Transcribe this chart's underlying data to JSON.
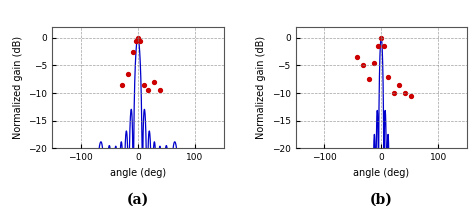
{
  "title_a": "(a)",
  "title_b": "(b)",
  "xlabel": "angle (deg)",
  "ylabel": "Normalized gain (dB)",
  "xlim": [
    -150,
    150
  ],
  "ylim": [
    -20,
    2
  ],
  "yticks": [
    0,
    -5,
    -10,
    -15,
    -20
  ],
  "xticks": [
    -100,
    0,
    100
  ],
  "line_color": "#0000cc",
  "dot_color": "#cc0000",
  "grid_color": "#888888",
  "background": "#ffffff",
  "figsize": [
    4.74,
    2.06
  ],
  "dpi": 100,
  "dots_a_x": [
    -28,
    -18,
    -8,
    -3,
    0,
    4,
    10,
    18,
    28,
    38
  ],
  "dots_a_y": [
    -8.5,
    -6.5,
    -2.5,
    -0.5,
    0.0,
    -0.5,
    -8.5,
    -9.5,
    -8.0,
    -9.5
  ],
  "dots_b_x": [
    -42,
    -32,
    -22,
    -12,
    -5,
    0,
    5,
    12,
    22,
    32,
    42,
    52
  ],
  "dots_b_y": [
    -3.5,
    -5.0,
    -7.5,
    -4.5,
    -1.5,
    0.0,
    -1.5,
    -7.0,
    -10.0,
    -8.5,
    -10.0,
    -10.5
  ]
}
